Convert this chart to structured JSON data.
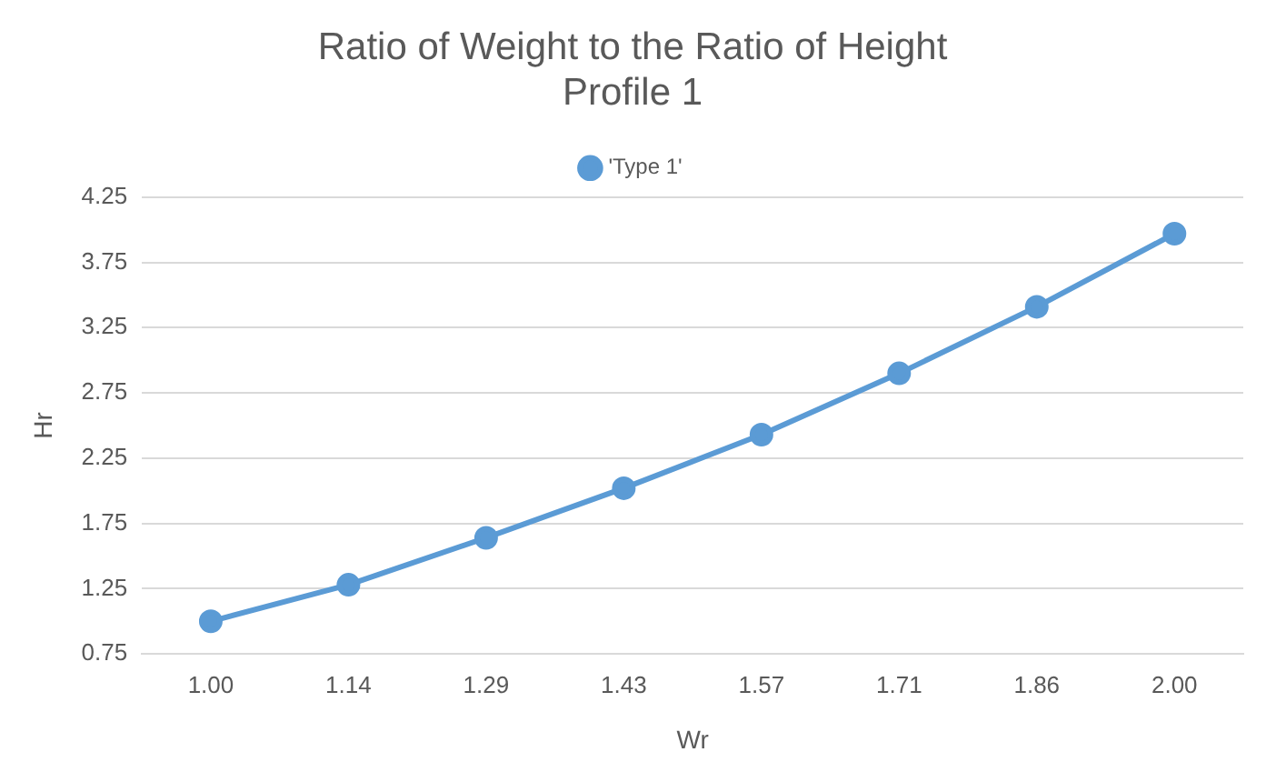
{
  "chart_data": {
    "type": "line",
    "title": "Ratio of Weight to the Ratio of Height\nProfile 1",
    "xlabel": "Wr",
    "ylabel": "Hr",
    "categories": [
      "1.00",
      "1.14",
      "1.29",
      "1.43",
      "1.57",
      "1.71",
      "1.86",
      "2.00"
    ],
    "series": [
      {
        "name": "'Type 1'",
        "color": "#5b9bd5",
        "values": [
          1.0,
          1.28,
          1.64,
          2.02,
          2.43,
          2.9,
          3.41,
          3.97
        ]
      }
    ],
    "ylim": [
      0.75,
      4.25
    ],
    "yticks": [
      0.75,
      1.25,
      1.75,
      2.25,
      2.75,
      3.25,
      3.75,
      4.25
    ],
    "grid": "y",
    "legend": "top",
    "marker": "circle",
    "line_style": "solid"
  }
}
